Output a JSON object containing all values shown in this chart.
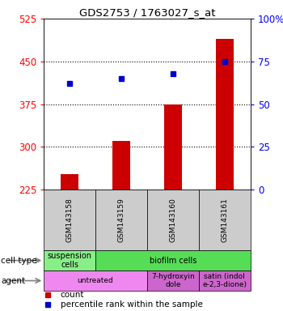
{
  "title": "GDS2753 / 1763027_s_at",
  "samples": [
    "GSM143158",
    "GSM143159",
    "GSM143160",
    "GSM143161"
  ],
  "bar_values": [
    253,
    310,
    375,
    490
  ],
  "dot_pct": [
    62,
    65,
    68,
    75
  ],
  "bar_color": "#cc0000",
  "dot_color": "#0000cc",
  "ylim_left": [
    225,
    525
  ],
  "ylim_right": [
    0,
    100
  ],
  "yticks_left": [
    225,
    300,
    375,
    450,
    525
  ],
  "yticks_right": [
    0,
    25,
    50,
    75,
    100
  ],
  "ytick_labels_right": [
    "0",
    "25",
    "50",
    "75",
    "100%"
  ],
  "grid_values": [
    300,
    375,
    450
  ],
  "cell_type_row": [
    {
      "label": "suspension\ncells",
      "color": "#88ee88",
      "colspan": 1
    },
    {
      "label": "biofilm cells",
      "color": "#55dd55",
      "colspan": 3
    }
  ],
  "agent_row": [
    {
      "label": "untreated",
      "color": "#ee88ee",
      "colspan": 2
    },
    {
      "label": "7-hydroxyin\ndole",
      "color": "#cc66cc",
      "colspan": 1
    },
    {
      "label": "satin (indol\ne-2,3-dione)",
      "color": "#cc66cc",
      "colspan": 1
    }
  ],
  "legend_count_color": "#cc0000",
  "legend_dot_color": "#0000cc",
  "left_label_cell_type": "cell type",
  "left_label_agent": "agent",
  "sample_box_color": "#cccccc"
}
